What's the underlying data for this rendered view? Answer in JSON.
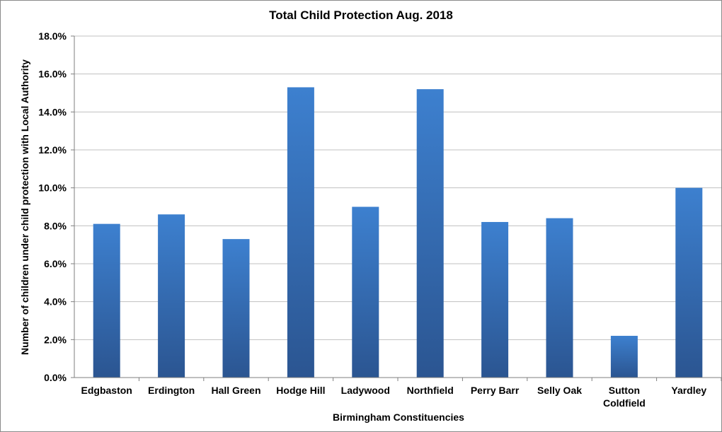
{
  "chart_data": {
    "type": "bar",
    "title": "Total Child Protection Aug. 2018",
    "xlabel": "Birmingham Constituencies",
    "ylabel": "Number of children under child protection with Local Authority",
    "categories": [
      "Edgbaston",
      "Erdington",
      "Hall Green",
      "Hodge Hill",
      "Ladywood",
      "Northfield",
      "Perry Barr",
      "Selly Oak",
      "Sutton Coldfield",
      "Yardley"
    ],
    "values": [
      8.1,
      8.6,
      7.3,
      15.3,
      9.0,
      15.2,
      8.2,
      8.4,
      2.2,
      10.0
    ],
    "value_format": "percent",
    "ylim": [
      0,
      18
    ],
    "yticks": [
      "0.0%",
      "2.0%",
      "4.0%",
      "6.0%",
      "8.0%",
      "10.0%",
      "12.0%",
      "14.0%",
      "16.0%",
      "18.0%"
    ],
    "grid": true,
    "legend": "none",
    "colors": {
      "bar_top": "#3d80cf",
      "bar_bottom": "#2b5591",
      "grid": "#c0c0c0",
      "axis": "#7f7f7f"
    }
  }
}
